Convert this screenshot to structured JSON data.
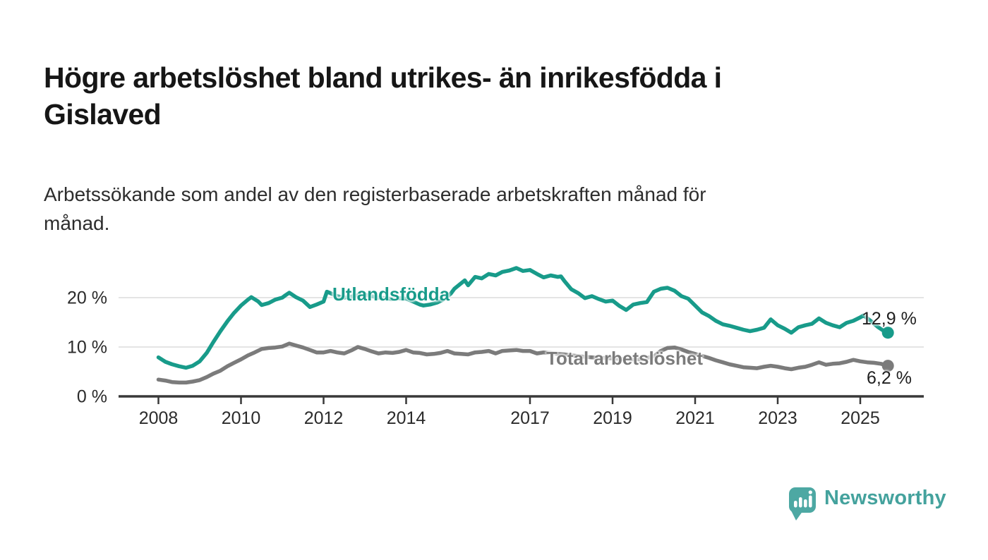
{
  "header": {
    "title": "Högre arbetslöshet bland utrikes- än inrikesfödda i\nGislaved",
    "subtitle": "Arbetssökande som andel av den registerbaserade arbetskraften månad för\nmånad."
  },
  "chart_data": {
    "type": "line",
    "title": "Högre arbetslöshet bland utrikes- än inrikesfödda i Gislaved",
    "xlabel": "",
    "ylabel": "",
    "grid": "horizontal-y",
    "legend_position": "inline-labels",
    "xlim": [
      2008,
      2025.9
    ],
    "ylim": [
      0,
      28
    ],
    "x_ticks": [
      {
        "label": "2008",
        "year": 2008
      },
      {
        "label": "2010",
        "year": 2010
      },
      {
        "label": "2012",
        "year": 2012
      },
      {
        "label": "2014",
        "year": 2014
      },
      {
        "label": "2017",
        "year": 2017
      },
      {
        "label": "2019",
        "year": 2019
      },
      {
        "label": "2021",
        "year": 2021
      },
      {
        "label": "2023",
        "year": 2023
      },
      {
        "label": "2025",
        "year": 2025
      }
    ],
    "y_ticks": [
      {
        "label": "0 %",
        "value": 0
      },
      {
        "label": "10 %",
        "value": 10
      },
      {
        "label": "20 %",
        "value": 20
      }
    ],
    "series": [
      {
        "name": "Utlandsfödda",
        "color": "#189b8a",
        "end_label": "12,9 %",
        "end_value": 12.9,
        "points": [
          [
            2008.0,
            7.9
          ],
          [
            2008.17,
            7.0
          ],
          [
            2008.33,
            6.5
          ],
          [
            2008.5,
            6.1
          ],
          [
            2008.67,
            5.8
          ],
          [
            2008.83,
            6.2
          ],
          [
            2009.0,
            7.1
          ],
          [
            2009.17,
            8.8
          ],
          [
            2009.33,
            11.0
          ],
          [
            2009.5,
            13.2
          ],
          [
            2009.67,
            15.2
          ],
          [
            2009.83,
            16.9
          ],
          [
            2010.0,
            18.4
          ],
          [
            2010.17,
            19.6
          ],
          [
            2010.25,
            20.1
          ],
          [
            2010.42,
            19.2
          ],
          [
            2010.5,
            18.5
          ],
          [
            2010.67,
            18.9
          ],
          [
            2010.83,
            19.6
          ],
          [
            2011.0,
            20.0
          ],
          [
            2011.08,
            20.5
          ],
          [
            2011.17,
            21.0
          ],
          [
            2011.33,
            20.1
          ],
          [
            2011.5,
            19.4
          ],
          [
            2011.67,
            18.1
          ],
          [
            2011.83,
            18.6
          ],
          [
            2012.0,
            19.2
          ],
          [
            2012.08,
            21.2
          ],
          [
            2012.17,
            20.9
          ],
          [
            2012.33,
            20.3
          ],
          [
            2012.5,
            20.0
          ],
          [
            2012.67,
            20.2
          ],
          [
            2012.83,
            20.5
          ],
          [
            2013.0,
            20.6
          ],
          [
            2013.17,
            20.3
          ],
          [
            2013.33,
            20.0
          ],
          [
            2013.5,
            19.9
          ],
          [
            2013.67,
            19.7
          ],
          [
            2013.83,
            19.9
          ],
          [
            2014.0,
            19.8
          ],
          [
            2014.17,
            19.2
          ],
          [
            2014.33,
            18.6
          ],
          [
            2014.42,
            18.4
          ],
          [
            2014.58,
            18.6
          ],
          [
            2014.75,
            19.0
          ],
          [
            2014.92,
            19.7
          ],
          [
            2015.08,
            20.8
          ],
          [
            2015.17,
            21.8
          ],
          [
            2015.33,
            22.9
          ],
          [
            2015.42,
            23.5
          ],
          [
            2015.5,
            22.5
          ],
          [
            2015.67,
            24.2
          ],
          [
            2015.83,
            23.9
          ],
          [
            2016.0,
            24.8
          ],
          [
            2016.17,
            24.5
          ],
          [
            2016.33,
            25.2
          ],
          [
            2016.5,
            25.5
          ],
          [
            2016.67,
            26.0
          ],
          [
            2016.83,
            25.4
          ],
          [
            2017.0,
            25.6
          ],
          [
            2017.17,
            24.8
          ],
          [
            2017.33,
            24.1
          ],
          [
            2017.5,
            24.5
          ],
          [
            2017.67,
            24.2
          ],
          [
            2017.75,
            24.3
          ],
          [
            2017.83,
            23.4
          ],
          [
            2018.0,
            21.7
          ],
          [
            2018.17,
            20.9
          ],
          [
            2018.33,
            19.9
          ],
          [
            2018.5,
            20.3
          ],
          [
            2018.67,
            19.7
          ],
          [
            2018.83,
            19.2
          ],
          [
            2019.0,
            19.4
          ],
          [
            2019.17,
            18.3
          ],
          [
            2019.33,
            17.5
          ],
          [
            2019.5,
            18.6
          ],
          [
            2019.67,
            18.9
          ],
          [
            2019.83,
            19.1
          ],
          [
            2020.0,
            21.2
          ],
          [
            2020.17,
            21.8
          ],
          [
            2020.33,
            22.0
          ],
          [
            2020.5,
            21.4
          ],
          [
            2020.67,
            20.3
          ],
          [
            2020.83,
            19.8
          ],
          [
            2021.0,
            18.4
          ],
          [
            2021.17,
            17.0
          ],
          [
            2021.33,
            16.3
          ],
          [
            2021.5,
            15.3
          ],
          [
            2021.67,
            14.6
          ],
          [
            2021.83,
            14.3
          ],
          [
            2022.0,
            13.9
          ],
          [
            2022.17,
            13.5
          ],
          [
            2022.33,
            13.2
          ],
          [
            2022.5,
            13.5
          ],
          [
            2022.67,
            13.9
          ],
          [
            2022.83,
            15.6
          ],
          [
            2023.0,
            14.4
          ],
          [
            2023.17,
            13.7
          ],
          [
            2023.33,
            12.9
          ],
          [
            2023.5,
            14.0
          ],
          [
            2023.67,
            14.4
          ],
          [
            2023.83,
            14.7
          ],
          [
            2024.0,
            15.8
          ],
          [
            2024.17,
            14.9
          ],
          [
            2024.33,
            14.4
          ],
          [
            2024.5,
            14.0
          ],
          [
            2024.67,
            14.9
          ],
          [
            2024.83,
            15.3
          ],
          [
            2025.0,
            16.0
          ],
          [
            2025.08,
            16.4
          ],
          [
            2025.25,
            15.3
          ],
          [
            2025.42,
            14.1
          ],
          [
            2025.58,
            13.2
          ],
          [
            2025.67,
            12.9
          ]
        ]
      },
      {
        "name": "Total arbetslöshet",
        "color": "#7b7b7b",
        "end_label": "6,2 %",
        "end_value": 6.2,
        "points": [
          [
            2008.0,
            3.4
          ],
          [
            2008.17,
            3.2
          ],
          [
            2008.33,
            2.9
          ],
          [
            2008.5,
            2.8
          ],
          [
            2008.67,
            2.8
          ],
          [
            2008.83,
            3.0
          ],
          [
            2009.0,
            3.3
          ],
          [
            2009.17,
            3.9
          ],
          [
            2009.33,
            4.6
          ],
          [
            2009.5,
            5.2
          ],
          [
            2009.67,
            6.1
          ],
          [
            2009.83,
            6.8
          ],
          [
            2010.0,
            7.5
          ],
          [
            2010.17,
            8.3
          ],
          [
            2010.33,
            8.9
          ],
          [
            2010.5,
            9.6
          ],
          [
            2010.67,
            9.8
          ],
          [
            2010.83,
            9.9
          ],
          [
            2011.0,
            10.1
          ],
          [
            2011.17,
            10.7
          ],
          [
            2011.33,
            10.3
          ],
          [
            2011.5,
            9.9
          ],
          [
            2011.67,
            9.4
          ],
          [
            2011.83,
            8.9
          ],
          [
            2012.0,
            8.9
          ],
          [
            2012.17,
            9.2
          ],
          [
            2012.33,
            8.9
          ],
          [
            2012.5,
            8.7
          ],
          [
            2012.67,
            9.3
          ],
          [
            2012.83,
            10.0
          ],
          [
            2013.0,
            9.6
          ],
          [
            2013.17,
            9.1
          ],
          [
            2013.33,
            8.7
          ],
          [
            2013.5,
            8.9
          ],
          [
            2013.67,
            8.8
          ],
          [
            2013.83,
            9.0
          ],
          [
            2014.0,
            9.4
          ],
          [
            2014.17,
            8.9
          ],
          [
            2014.33,
            8.8
          ],
          [
            2014.5,
            8.5
          ],
          [
            2014.67,
            8.6
          ],
          [
            2014.83,
            8.8
          ],
          [
            2015.0,
            9.2
          ],
          [
            2015.17,
            8.7
          ],
          [
            2015.33,
            8.6
          ],
          [
            2015.5,
            8.5
          ],
          [
            2015.67,
            8.9
          ],
          [
            2015.83,
            9.0
          ],
          [
            2016.0,
            9.2
          ],
          [
            2016.17,
            8.7
          ],
          [
            2016.33,
            9.2
          ],
          [
            2016.5,
            9.3
          ],
          [
            2016.67,
            9.4
          ],
          [
            2016.83,
            9.2
          ],
          [
            2017.0,
            9.2
          ],
          [
            2017.17,
            8.7
          ],
          [
            2017.33,
            8.9
          ],
          [
            2017.5,
            8.8
          ],
          [
            2017.67,
            8.6
          ],
          [
            2017.83,
            8.5
          ],
          [
            2018.0,
            8.3
          ],
          [
            2018.33,
            8.0
          ],
          [
            2018.67,
            7.8
          ],
          [
            2019.0,
            7.7
          ],
          [
            2019.33,
            7.5
          ],
          [
            2019.67,
            7.5
          ],
          [
            2020.0,
            8.1
          ],
          [
            2020.17,
            9.2
          ],
          [
            2020.33,
            9.8
          ],
          [
            2020.5,
            9.9
          ],
          [
            2020.67,
            9.5
          ],
          [
            2020.83,
            9.0
          ],
          [
            2021.0,
            8.6
          ],
          [
            2021.17,
            8.2
          ],
          [
            2021.33,
            7.8
          ],
          [
            2021.5,
            7.3
          ],
          [
            2021.67,
            6.9
          ],
          [
            2021.83,
            6.5
          ],
          [
            2022.0,
            6.2
          ],
          [
            2022.17,
            5.9
          ],
          [
            2022.33,
            5.8
          ],
          [
            2022.5,
            5.7
          ],
          [
            2022.67,
            6.0
          ],
          [
            2022.83,
            6.2
          ],
          [
            2023.0,
            6.0
          ],
          [
            2023.17,
            5.7
          ],
          [
            2023.33,
            5.5
          ],
          [
            2023.5,
            5.8
          ],
          [
            2023.67,
            6.0
          ],
          [
            2023.83,
            6.4
          ],
          [
            2024.0,
            6.9
          ],
          [
            2024.17,
            6.4
          ],
          [
            2024.33,
            6.6
          ],
          [
            2024.5,
            6.7
          ],
          [
            2024.67,
            7.0
          ],
          [
            2024.83,
            7.4
          ],
          [
            2025.0,
            7.1
          ],
          [
            2025.17,
            6.9
          ],
          [
            2025.33,
            6.8
          ],
          [
            2025.5,
            6.6
          ],
          [
            2025.67,
            6.2
          ]
        ]
      }
    ],
    "style": {
      "axis_color": "#383838",
      "grid_color": "#dcdcdc",
      "tick_label_color": "#2b2b2b"
    }
  },
  "branding": {
    "text": "Newsworthy",
    "color": "#44a29d",
    "icon_color": "#4da8a3"
  }
}
